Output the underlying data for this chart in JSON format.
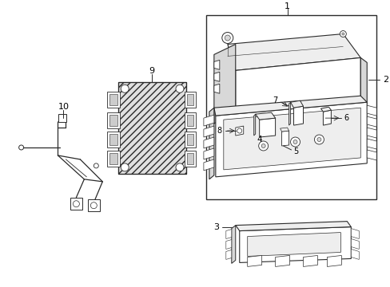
{
  "background_color": "#ffffff",
  "line_color": "#2a2a2a",
  "fig_width": 4.89,
  "fig_height": 3.6,
  "dpi": 100,
  "gray_fill": "#d8d8d8",
  "light_gray": "#eeeeee",
  "label_fontsize": 7.5
}
